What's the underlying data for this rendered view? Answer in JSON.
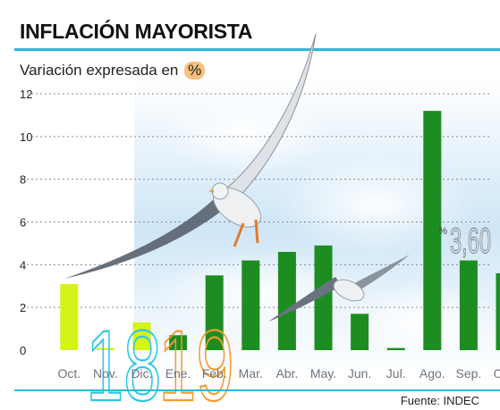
{
  "title": "INFLACIÓN MAYORISTA",
  "subtitle": "Variación expresada en",
  "subtitle_unit": "%",
  "source": "Fuente: INDEC",
  "colors": {
    "bar": "#1d8d22",
    "bar_highlight": "#d6f318",
    "accent": "#2bb9d6",
    "year_2018": "#2bc6e8",
    "year_2019": "#f39a2e",
    "callout": "#8a8a8a"
  },
  "chart_data": {
    "type": "bar",
    "categories": [
      "Oct.",
      "Nov.",
      "Dic.",
      "Ene.",
      "Feb.",
      "Mar.",
      "Abr.",
      "May.",
      "Jun.",
      "Jul.",
      "Ago.",
      "Sep.",
      "Oct."
    ],
    "values": [
      3.1,
      0.1,
      1.3,
      0.7,
      3.5,
      4.2,
      4.6,
      4.9,
      1.7,
      0.1,
      11.2,
      4.2,
      3.6
    ],
    "highlighted_categories": [
      0,
      1,
      2
    ],
    "ylim": [
      0,
      12
    ],
    "yticks": [
      "0",
      "2",
      "4",
      "6",
      "8",
      "10",
      "12"
    ],
    "year_labels": [
      {
        "label": "18",
        "from": 1,
        "to": 2
      },
      {
        "label": "19",
        "from": 3,
        "to": 4
      }
    ],
    "callout": {
      "unit": "%",
      "value": "3,60"
    }
  }
}
